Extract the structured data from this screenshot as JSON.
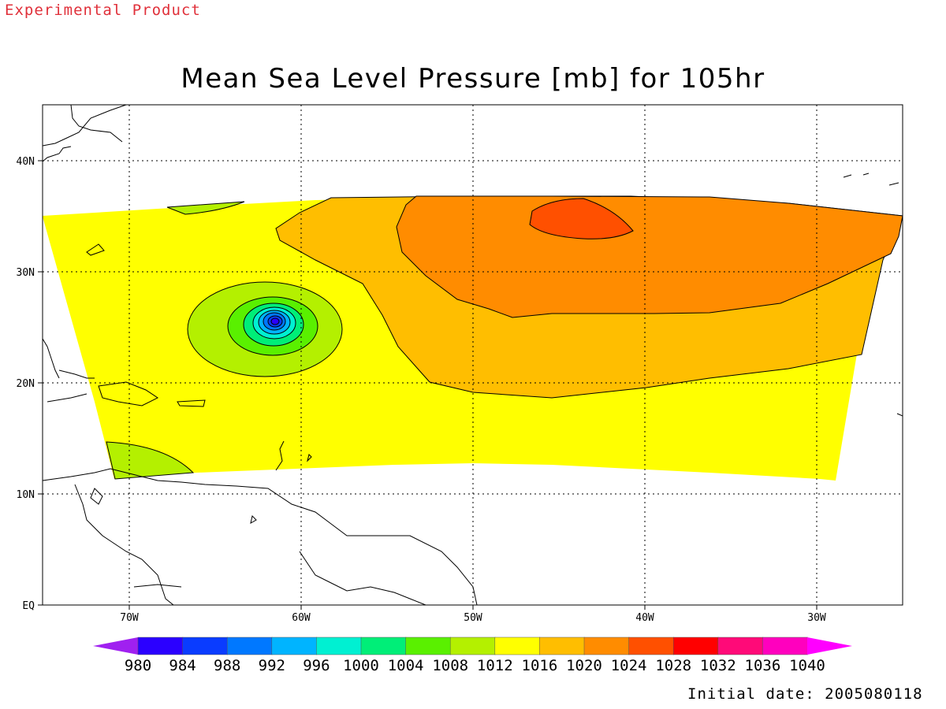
{
  "header": {
    "experimental_label": "Experimental Product",
    "title": "Mean Sea Level Pressure [mb] for 105hr"
  },
  "footer": {
    "initial_date": "Initial date: 2005080118"
  },
  "map": {
    "lon_labels": [
      "70W",
      "60W",
      "50W",
      "40W",
      "30W"
    ],
    "lat_labels": [
      "EQ",
      "10N",
      "20N",
      "30N",
      "40N"
    ],
    "grid": "dotted"
  },
  "colorbar": {
    "levels": [
      "980",
      "984",
      "988",
      "992",
      "996",
      "1000",
      "1004",
      "1008",
      "1012",
      "1016",
      "1020",
      "1024",
      "1028",
      "1032",
      "1036",
      "1040"
    ],
    "colors": [
      "#a020f0",
      "#2b00ff",
      "#0a3cff",
      "#0078ff",
      "#00b4ff",
      "#00f0d2",
      "#00ee78",
      "#5af000",
      "#b4f000",
      "#ffff00",
      "#ffbe00",
      "#ff8c00",
      "#ff5000",
      "#ff0000",
      "#ff0a78",
      "#ff00be",
      "#ff00ff"
    ]
  },
  "field": {
    "background_range": "1012-1016",
    "low_center": "25.5N 61.5W",
    "high_center": "35N 44W"
  }
}
